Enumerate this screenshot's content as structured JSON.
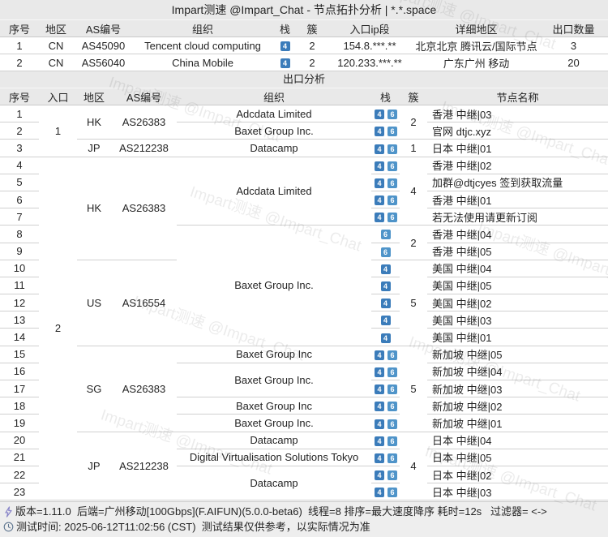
{
  "title": "Impart测速 @Impart_Chat - 节点拓扑分析 | *.*.space",
  "watermark_text": "Impart测速 @Impart_Chat",
  "colors": {
    "ipv4_badge": "#3b7cba",
    "ipv6_badge": "#4f94c9",
    "header_bg": "#e9e9e9"
  },
  "entry_table": {
    "headers": [
      "序号",
      "地区",
      "AS编号",
      "组织",
      "栈",
      "簇",
      "入口ip段",
      "详细地区",
      "出口数量"
    ],
    "rows": [
      {
        "index": "1",
        "region": "CN",
        "asn": "AS45090",
        "org": "Tencent cloud computing",
        "stack": [
          "4"
        ],
        "cluster": "2",
        "ip": "154.8.***.**",
        "detail": "北京北京 腾讯云/国际节点",
        "exits": "3"
      },
      {
        "index": "2",
        "region": "CN",
        "asn": "AS56040",
        "org": "China Mobile",
        "stack": [
          "4"
        ],
        "cluster": "2",
        "ip": "120.233.***.**",
        "detail": "广东广州 移动",
        "exits": "20"
      }
    ]
  },
  "exit_section": {
    "title": "出口分析"
  },
  "exit_table": {
    "headers": [
      "序号",
      "入口",
      "地区",
      "AS编号",
      "组织",
      "栈",
      "簇",
      "节点名称"
    ],
    "rows": [
      {
        "index": "1",
        "entry": {
          "v": "1",
          "rs": 3
        },
        "region": {
          "v": "HK",
          "rs": 2
        },
        "asn": {
          "v": "AS26383",
          "rs": 2
        },
        "org": "Adcdata Limited",
        "stack": [
          "4",
          "6"
        ],
        "cluster": {
          "v": "2",
          "rs": 2
        },
        "node": "香港 中继|03"
      },
      {
        "index": "2",
        "org": "Baxet Group Inc.",
        "stack": [
          "4",
          "6"
        ],
        "node": "官网 dtjc.xyz"
      },
      {
        "index": "3",
        "region": "JP",
        "asn": "AS212238",
        "org": "Datacamp",
        "stack": [
          "4",
          "6"
        ],
        "cluster": "1",
        "node": "日本 中继|01"
      },
      {
        "index": "4",
        "entry": {
          "v": "2",
          "rs": 20
        },
        "region": {
          "v": "HK",
          "rs": 6
        },
        "asn": {
          "v": "AS26383",
          "rs": 6
        },
        "org": {
          "v": "Adcdata Limited",
          "rs": 4
        },
        "stack": [
          "4",
          "6"
        ],
        "cluster": {
          "v": "4",
          "rs": 4
        },
        "node": "香港 中继|02"
      },
      {
        "index": "5",
        "stack": [
          "4",
          "6"
        ],
        "node": "加群@dtjcyes 签到获取流量"
      },
      {
        "index": "6",
        "stack": [
          "4",
          "6"
        ],
        "node": "香港 中继|01"
      },
      {
        "index": "7",
        "stack": [
          "4",
          "6"
        ],
        "node": "若无法使用请更新订阅"
      },
      {
        "index": "8",
        "org": {
          "v": "Baxet Group Inc.",
          "rs": 7
        },
        "stack": [
          "6"
        ],
        "cluster": {
          "v": "2",
          "rs": 2
        },
        "node": "香港 中继|04"
      },
      {
        "index": "9",
        "stack": [
          "6"
        ],
        "node": "香港 中继|05"
      },
      {
        "index": "10",
        "region": {
          "v": "US",
          "rs": 5
        },
        "asn": {
          "v": "AS16554",
          "rs": 5
        },
        "stack": [
          "4"
        ],
        "cluster": {
          "v": "5",
          "rs": 5
        },
        "node": "美国 中继|04"
      },
      {
        "index": "11",
        "stack": [
          "4"
        ],
        "node": "美国 中继|05"
      },
      {
        "index": "12",
        "stack": [
          "4"
        ],
        "node": "美国 中继|02"
      },
      {
        "index": "13",
        "stack": [
          "4"
        ],
        "node": "美国 中继|03"
      },
      {
        "index": "14",
        "stack": [
          "4"
        ],
        "node": "美国 中继|01"
      },
      {
        "index": "15",
        "region": {
          "v": "SG",
          "rs": 5
        },
        "asn": {
          "v": "AS26383",
          "rs": 5
        },
        "org": "Baxet Group Inc",
        "stack": [
          "4",
          "6"
        ],
        "cluster": {
          "v": "5",
          "rs": 5
        },
        "node": "新加坡 中继|05"
      },
      {
        "index": "16",
        "org": {
          "v": "Baxet Group Inc.",
          "rs": 2
        },
        "stack": [
          "4",
          "6"
        ],
        "node": "新加坡 中继|04"
      },
      {
        "index": "17",
        "stack": [
          "4",
          "6"
        ],
        "node": "新加坡 中继|03"
      },
      {
        "index": "18",
        "org": "Baxet Group Inc",
        "stack": [
          "4",
          "6"
        ],
        "node": "新加坡 中继|02"
      },
      {
        "index": "19",
        "org": "Baxet Group Inc.",
        "stack": [
          "4",
          "6"
        ],
        "node": "新加坡 中继|01"
      },
      {
        "index": "20",
        "region": {
          "v": "JP",
          "rs": 4
        },
        "asn": {
          "v": "AS212238",
          "rs": 4
        },
        "org": "Datacamp",
        "stack": [
          "4",
          "6"
        ],
        "cluster": {
          "v": "4",
          "rs": 4
        },
        "node": "日本 中继|04"
      },
      {
        "index": "21",
        "org": "Digital Virtualisation Solutions Tokyo",
        "stack": [
          "4",
          "6"
        ],
        "node": "日本 中继|05"
      },
      {
        "index": "22",
        "org": {
          "v": "Datacamp",
          "rs": 2
        },
        "stack": [
          "4",
          "6"
        ],
        "node": "日本 中继|02"
      },
      {
        "index": "23",
        "stack": [
          "4",
          "6"
        ],
        "node": "日本 中继|03"
      }
    ]
  },
  "footer": {
    "line1": "版本=1.11.0  后端=广州移动[100Gbps](F.AIFUN)(5.0.0-beta6)  线程=8 排序=最大速度降序 耗时=12s   过滤器= <->",
    "line1_icon": "lightning",
    "line2": "测试时间: 2025-06-12T11:02:56 (CST)  测试结果仅供参考，以实际情况为准",
    "line2_icon": "clock"
  }
}
